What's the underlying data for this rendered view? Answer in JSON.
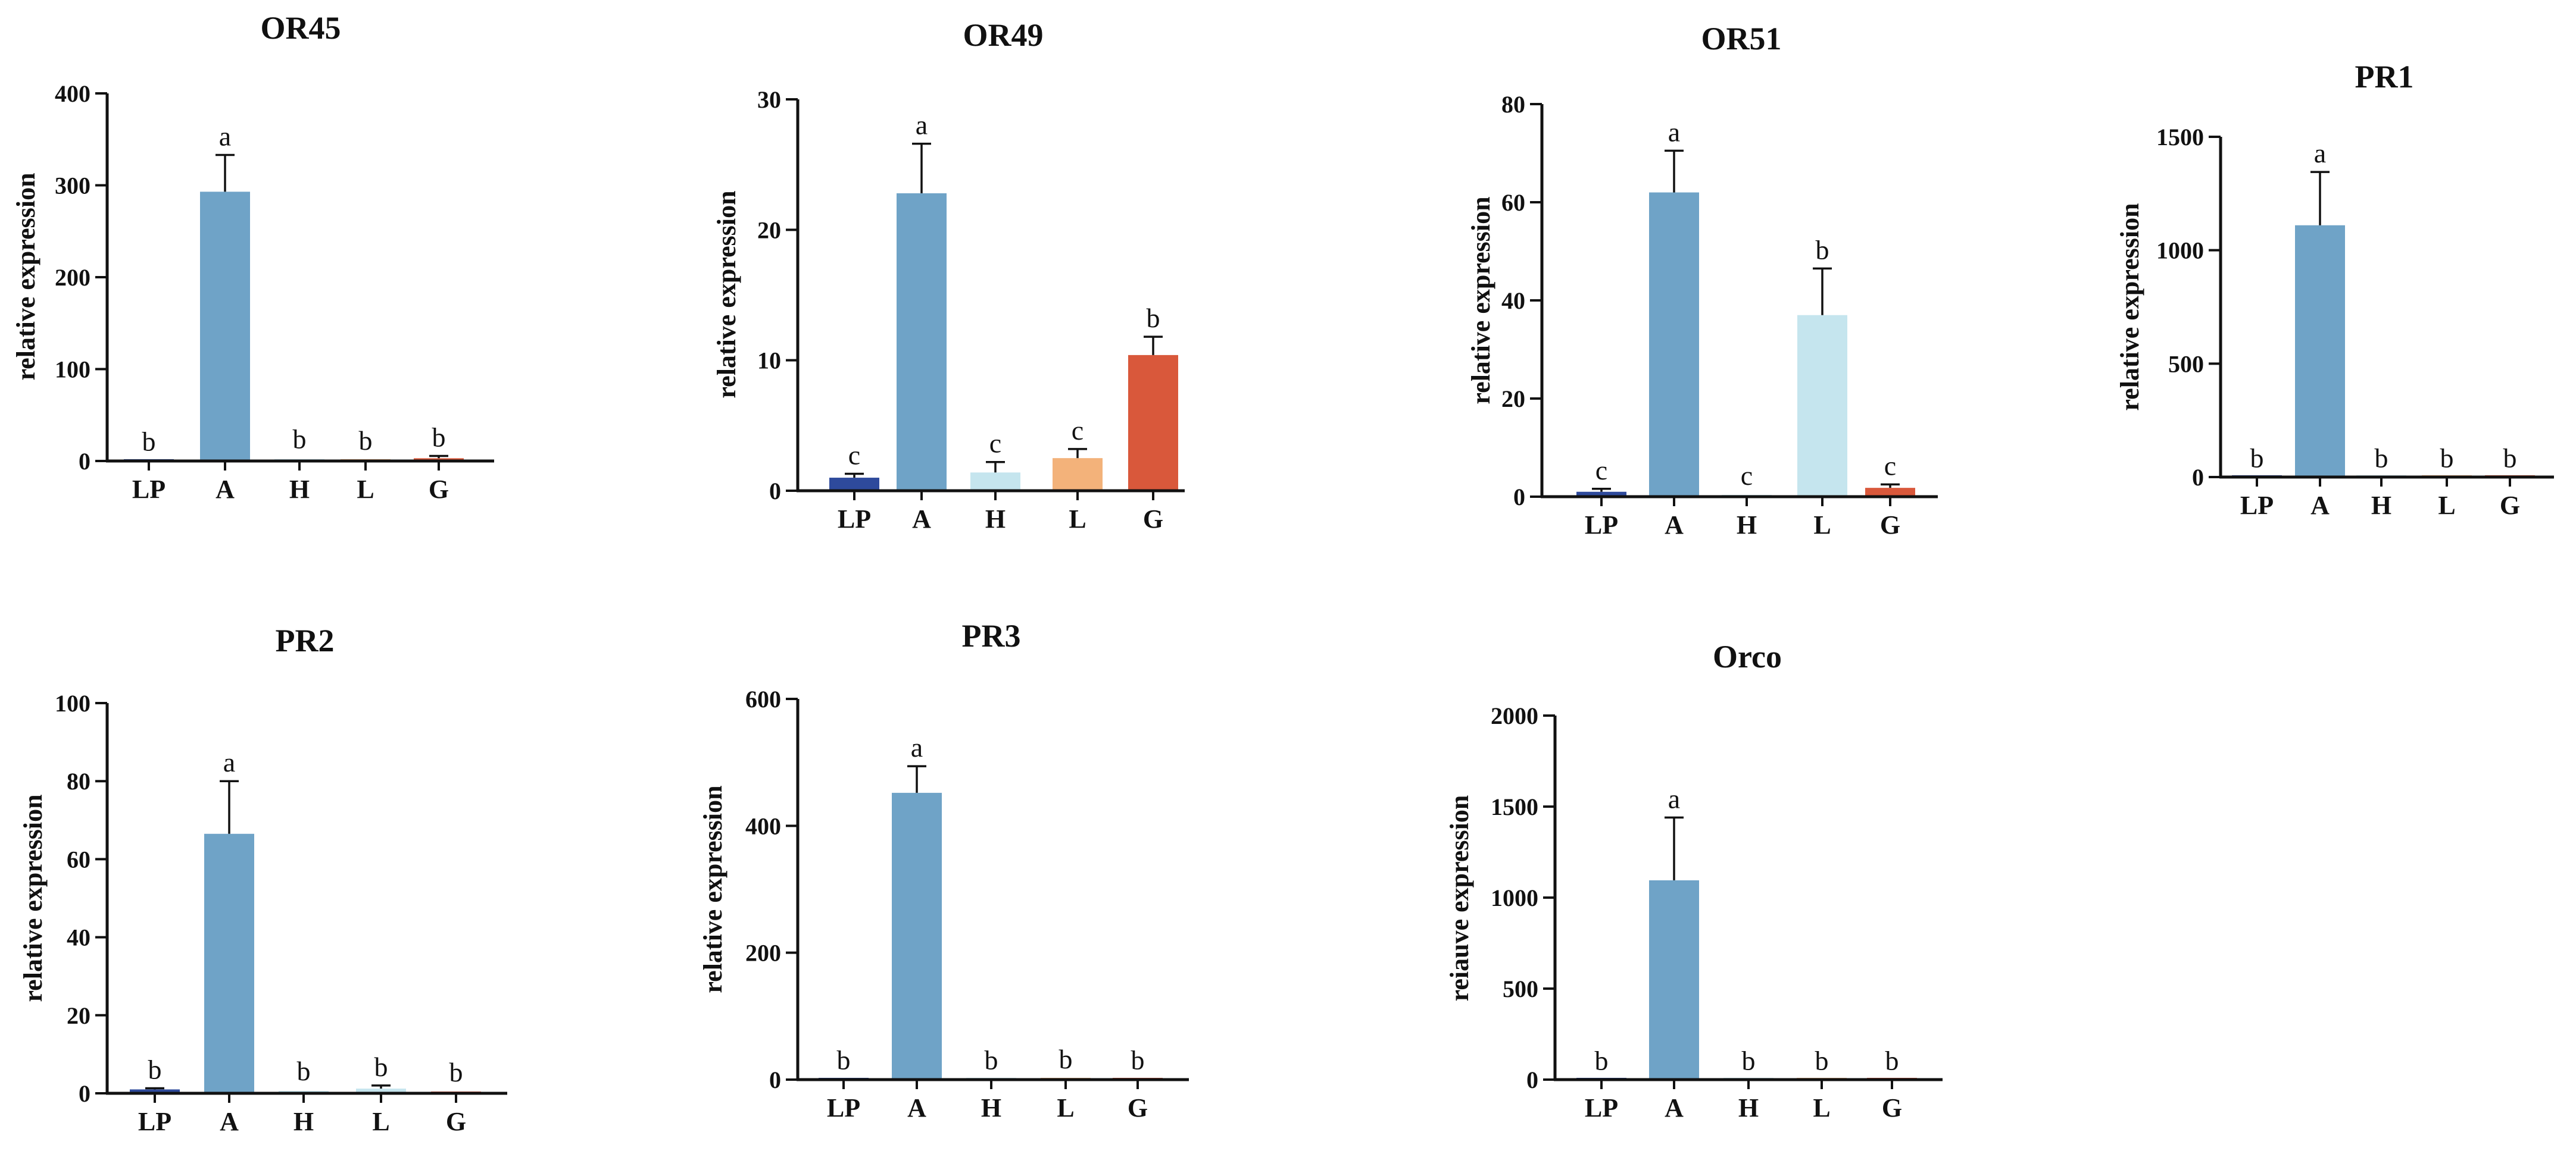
{
  "chart_data": [
    {
      "type": "bar",
      "title": "OR45",
      "ylabel": "relative expression",
      "ylim": [
        0,
        400
      ],
      "yticks": [
        0,
        100,
        200,
        300,
        400
      ],
      "categories": [
        "LP",
        "A",
        "H",
        "L",
        "G"
      ],
      "values": [
        0.5,
        293,
        2,
        1,
        3
      ],
      "errors": [
        0.5,
        40,
        1.5,
        1,
        2.5
      ],
      "significance": [
        "b",
        "a",
        "b",
        "b",
        "b"
      ],
      "colors": [
        "#2e4a9c",
        "#6fa3c7",
        "#c5e5ee",
        "#f3b27a",
        "#d9583b"
      ]
    },
    {
      "type": "bar",
      "title": "OR49",
      "ylabel": "relative expression",
      "ylim": [
        0,
        30
      ],
      "yticks": [
        0,
        10,
        20,
        30
      ],
      "categories": [
        "LP",
        "A",
        "H",
        "L",
        "G"
      ],
      "values": [
        1,
        22.8,
        1.4,
        2.5,
        10.4
      ],
      "errors": [
        0.3,
        3.8,
        0.8,
        0.7,
        1.4
      ],
      "significance": [
        "c",
        "a",
        "c",
        "c",
        "b"
      ],
      "colors": [
        "#2e4a9c",
        "#6fa3c7",
        "#c5e5ee",
        "#f3b27a",
        "#d9583b"
      ]
    },
    {
      "type": "bar",
      "title": "OR51",
      "ylabel": "relative expression",
      "ylim": [
        0,
        80
      ],
      "yticks": [
        0,
        20,
        40,
        60,
        80
      ],
      "categories": [
        "LP",
        "A",
        "H",
        "L",
        "G"
      ],
      "values": [
        1,
        62,
        0.3,
        37,
        1.8
      ],
      "errors": [
        0.6,
        8.5,
        0.2,
        9.5,
        0.7
      ],
      "significance": [
        "c",
        "a",
        "c",
        "b",
        "c"
      ],
      "colors": [
        "#2e4a9c",
        "#6fa3c7",
        "#c5e5ee",
        "#c5e5ee",
        "#d9583b"
      ]
    },
    {
      "type": "bar",
      "title": "PR1",
      "ylabel": "relative expression",
      "ylim": [
        0,
        1500
      ],
      "yticks": [
        0,
        500,
        1000,
        1500
      ],
      "categories": [
        "LP",
        "A",
        "H",
        "L",
        "G"
      ],
      "values": [
        1,
        1110,
        1,
        1,
        1
      ],
      "errors": [
        0.5,
        235,
        0.5,
        0.5,
        0.5
      ],
      "significance": [
        "b",
        "a",
        "b",
        "b",
        "b"
      ],
      "colors": [
        "#2e4a9c",
        "#6fa3c7",
        "#c5e5ee",
        "#f3b27a",
        "#d9583b"
      ]
    },
    {
      "type": "bar",
      "title": "PR2",
      "ylabel": "relative expression",
      "ylim": [
        0,
        100
      ],
      "yticks": [
        0,
        20,
        40,
        60,
        80,
        100
      ],
      "categories": [
        "LP",
        "A",
        "H",
        "L",
        "G"
      ],
      "values": [
        1,
        66.5,
        0.6,
        1.2,
        0.4
      ],
      "errors": [
        0.3,
        13.5,
        0.3,
        0.8,
        0.2
      ],
      "significance": [
        "b",
        "a",
        "b",
        "b",
        "b"
      ],
      "colors": [
        "#2e4a9c",
        "#6fa3c7",
        "#c5e5ee",
        "#c5e5ee",
        "#d9583b"
      ]
    },
    {
      "type": "bar",
      "title": "PR3",
      "ylabel": "relative expression",
      "ylim": [
        0,
        600
      ],
      "yticks": [
        0,
        200,
        400,
        600
      ],
      "categories": [
        "LP",
        "A",
        "H",
        "L",
        "G"
      ],
      "values": [
        1,
        452,
        1,
        2,
        1
      ],
      "errors": [
        0.5,
        42,
        0.5,
        1,
        0.5
      ],
      "significance": [
        "b",
        "a",
        "b",
        "b",
        "b"
      ],
      "colors": [
        "#2e4a9c",
        "#6fa3c7",
        "#c5e5ee",
        "#f3b27a",
        "#d9583b"
      ]
    },
    {
      "type": "bar",
      "title": "Orco",
      "ylabel": "reiauve expression",
      "ylim": [
        0,
        2000
      ],
      "yticks": [
        0,
        500,
        1000,
        1500,
        2000
      ],
      "categories": [
        "LP",
        "A",
        "H",
        "L",
        "G"
      ],
      "values": [
        1,
        1095,
        1,
        1,
        1
      ],
      "errors": [
        0.5,
        345,
        0.5,
        0.5,
        0.5
      ],
      "significance": [
        "b",
        "a",
        "b",
        "b",
        "b"
      ],
      "colors": [
        "#2e4a9c",
        "#6fa3c7",
        "#c5e5ee",
        "#f3b27a",
        "#d9583b"
      ]
    }
  ]
}
